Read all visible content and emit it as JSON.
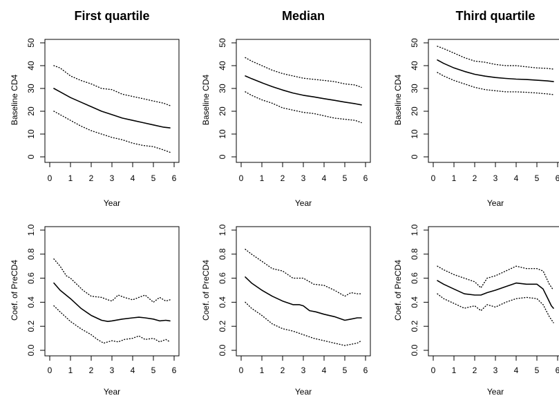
{
  "chart_data": [
    {
      "type": "line",
      "title": "First quartile",
      "xlabel": "Year",
      "ylabel": "Baseline CD4",
      "xlim": [
        0,
        6
      ],
      "ylim": [
        0,
        50
      ],
      "xticks": [
        0,
        1,
        2,
        3,
        4,
        5,
        6
      ],
      "yticks": [
        0,
        10,
        20,
        30,
        40,
        50
      ],
      "series": [
        {
          "style": "dotted",
          "x": [
            0.2,
            0.5,
            1,
            1.5,
            2,
            2.5,
            3,
            3.5,
            4,
            4.5,
            5,
            5.5,
            5.8
          ],
          "y": [
            40,
            39,
            35.5,
            33.5,
            32,
            30,
            29.5,
            27.5,
            26.5,
            25.5,
            24.5,
            23.5,
            22.5
          ]
        },
        {
          "style": "solid",
          "x": [
            0.2,
            0.5,
            1,
            1.5,
            2,
            2.5,
            3,
            3.5,
            4,
            4.5,
            5,
            5.5,
            5.8
          ],
          "y": [
            30,
            28.5,
            26,
            24,
            22,
            20,
            18.5,
            17,
            16,
            15,
            14,
            13,
            12.7
          ]
        },
        {
          "style": "dotted",
          "x": [
            0.2,
            0.5,
            1,
            1.5,
            2,
            2.5,
            3,
            3.5,
            4,
            4.5,
            5,
            5.5,
            5.8
          ],
          "y": [
            20,
            18.5,
            16,
            13.5,
            11.5,
            10,
            8.5,
            7.5,
            6,
            5,
            4.5,
            3,
            2
          ]
        }
      ]
    },
    {
      "type": "line",
      "title": "Median",
      "xlabel": "Year",
      "ylabel": "Baseline CD4",
      "xlim": [
        0,
        6
      ],
      "ylim": [
        0,
        50
      ],
      "xticks": [
        0,
        1,
        2,
        3,
        4,
        5,
        6
      ],
      "yticks": [
        0,
        10,
        20,
        30,
        40,
        50
      ],
      "series": [
        {
          "style": "dotted",
          "x": [
            0.2,
            0.5,
            1,
            1.5,
            2,
            2.5,
            3,
            3.5,
            4,
            4.5,
            5,
            5.5,
            5.8
          ],
          "y": [
            43.5,
            42,
            40,
            38,
            36.5,
            35.5,
            34.5,
            34,
            33.5,
            33,
            32,
            31.5,
            30.5
          ]
        },
        {
          "style": "solid",
          "x": [
            0.2,
            0.5,
            1,
            1.5,
            2,
            2.5,
            3,
            3.5,
            4,
            4.5,
            5,
            5.5,
            5.8
          ],
          "y": [
            35.5,
            34.3,
            32.5,
            30.8,
            29.3,
            28,
            27,
            26.3,
            25.5,
            24.8,
            24,
            23.3,
            22.8
          ]
        },
        {
          "style": "dotted",
          "x": [
            0.2,
            0.5,
            1,
            1.5,
            2,
            2.5,
            3,
            3.5,
            4,
            4.5,
            5,
            5.5,
            5.8
          ],
          "y": [
            28.5,
            27,
            25,
            23.5,
            21.5,
            20.5,
            19.5,
            19,
            18,
            17,
            16.5,
            16,
            15
          ]
        }
      ]
    },
    {
      "type": "line",
      "title": "Third quartile",
      "xlabel": "Year",
      "ylabel": "Baseline CD4",
      "xlim": [
        0,
        6
      ],
      "ylim": [
        0,
        50
      ],
      "xticks": [
        0,
        1,
        2,
        3,
        4,
        5,
        6
      ],
      "yticks": [
        0,
        10,
        20,
        30,
        40,
        50
      ],
      "series": [
        {
          "style": "dotted",
          "x": [
            0.2,
            0.5,
            1,
            1.5,
            2,
            2.5,
            3,
            3.5,
            4,
            4.5,
            5,
            5.5,
            5.8
          ],
          "y": [
            48.5,
            47.5,
            45.5,
            43.5,
            42,
            41.5,
            40.5,
            40,
            40,
            39.5,
            39,
            38.8,
            38.5
          ]
        },
        {
          "style": "solid",
          "x": [
            0.2,
            0.5,
            1,
            1.5,
            2,
            2.5,
            3,
            3.5,
            4,
            4.5,
            5,
            5.5,
            5.8
          ],
          "y": [
            42.5,
            41,
            39,
            37.5,
            36.2,
            35.4,
            34.8,
            34.4,
            34.1,
            33.9,
            33.6,
            33.3,
            33
          ]
        },
        {
          "style": "dotted",
          "x": [
            0.2,
            0.5,
            1,
            1.5,
            2,
            2.5,
            3,
            3.5,
            4,
            4.5,
            5,
            5.5,
            5.8
          ],
          "y": [
            37,
            35.5,
            33.5,
            32,
            30.5,
            29.5,
            29,
            28.5,
            28.5,
            28.3,
            28,
            27.6,
            27.3
          ]
        }
      ]
    },
    {
      "type": "line",
      "title": "",
      "xlabel": "Year",
      "ylabel": "Coef. of PreCD4",
      "xlim": [
        0,
        6
      ],
      "ylim": [
        0,
        1
      ],
      "xticks": [
        0,
        1,
        2,
        3,
        4,
        5,
        6
      ],
      "yticks": [
        0.0,
        0.2,
        0.4,
        0.6,
        0.8,
        1.0
      ],
      "tick_labels_y": [
        "0.0",
        "0.2",
        "0.4",
        "0.6",
        "0.8",
        "1.0"
      ],
      "series": [
        {
          "style": "dotted",
          "x": [
            0.2,
            0.5,
            0.8,
            1,
            1.3,
            1.6,
            2,
            2.5,
            2.8,
            3,
            3.3,
            3.6,
            4,
            4.3,
            4.6,
            5,
            5.3,
            5.6,
            5.8
          ],
          "y": [
            0.76,
            0.7,
            0.62,
            0.6,
            0.55,
            0.5,
            0.45,
            0.44,
            0.42,
            0.41,
            0.46,
            0.44,
            0.42,
            0.44,
            0.46,
            0.4,
            0.44,
            0.41,
            0.42
          ]
        },
        {
          "style": "solid",
          "x": [
            0.2,
            0.5,
            1,
            1.5,
            2,
            2.5,
            2.8,
            3,
            3.5,
            4,
            4.3,
            4.6,
            5,
            5.3,
            5.6,
            5.8
          ],
          "y": [
            0.56,
            0.5,
            0.43,
            0.35,
            0.29,
            0.25,
            0.24,
            0.245,
            0.26,
            0.27,
            0.275,
            0.27,
            0.26,
            0.245,
            0.25,
            0.245
          ]
        },
        {
          "style": "dotted",
          "x": [
            0.2,
            0.5,
            1,
            1.5,
            2,
            2.3,
            2.6,
            3,
            3.3,
            3.6,
            4,
            4.3,
            4.6,
            5,
            5.3,
            5.6,
            5.8
          ],
          "y": [
            0.37,
            0.32,
            0.24,
            0.18,
            0.13,
            0.09,
            0.06,
            0.08,
            0.07,
            0.09,
            0.1,
            0.12,
            0.09,
            0.1,
            0.07,
            0.09,
            0.07
          ]
        }
      ]
    },
    {
      "type": "line",
      "title": "",
      "xlabel": "Year",
      "ylabel": "Coef. of PreCD4",
      "xlim": [
        0,
        6
      ],
      "ylim": [
        0,
        1
      ],
      "xticks": [
        0,
        1,
        2,
        3,
        4,
        5,
        6
      ],
      "yticks": [
        0.0,
        0.2,
        0.4,
        0.6,
        0.8,
        1.0
      ],
      "tick_labels_y": [
        "0.0",
        "0.2",
        "0.4",
        "0.6",
        "0.8",
        "1.0"
      ],
      "series": [
        {
          "style": "dotted",
          "x": [
            0.2,
            0.5,
            1,
            1.5,
            2,
            2.5,
            3,
            3.5,
            4,
            4.5,
            5,
            5.3,
            5.6,
            5.8
          ],
          "y": [
            0.84,
            0.8,
            0.74,
            0.68,
            0.66,
            0.6,
            0.6,
            0.55,
            0.54,
            0.5,
            0.45,
            0.48,
            0.47,
            0.47
          ]
        },
        {
          "style": "solid",
          "x": [
            0.2,
            0.5,
            1,
            1.5,
            2,
            2.5,
            2.8,
            3,
            3.3,
            3.6,
            4,
            4.5,
            5,
            5.3,
            5.6,
            5.8
          ],
          "y": [
            0.61,
            0.56,
            0.5,
            0.45,
            0.41,
            0.38,
            0.38,
            0.37,
            0.33,
            0.32,
            0.3,
            0.28,
            0.25,
            0.26,
            0.27,
            0.27
          ]
        },
        {
          "style": "dotted",
          "x": [
            0.2,
            0.5,
            1,
            1.5,
            2,
            2.5,
            3,
            3.5,
            4,
            4.5,
            5,
            5.3,
            5.6,
            5.8
          ],
          "y": [
            0.4,
            0.35,
            0.29,
            0.22,
            0.18,
            0.16,
            0.13,
            0.1,
            0.08,
            0.06,
            0.04,
            0.05,
            0.06,
            0.08
          ]
        }
      ]
    },
    {
      "type": "line",
      "title": "",
      "xlabel": "Year",
      "ylabel": "Coef. of PreCD4",
      "xlim": [
        0,
        6
      ],
      "ylim": [
        0,
        1
      ],
      "xticks": [
        0,
        1,
        2,
        3,
        4,
        5,
        6
      ],
      "yticks": [
        0.0,
        0.2,
        0.4,
        0.6,
        0.8,
        1.0
      ],
      "tick_labels_y": [
        "0.0",
        "0.2",
        "0.4",
        "0.6",
        "0.8",
        "1.0"
      ],
      "series": [
        {
          "style": "dotted",
          "x": [
            0.2,
            0.5,
            1,
            1.5,
            2,
            2.3,
            2.6,
            3,
            3.5,
            4,
            4.5,
            5,
            5.3,
            5.6,
            5.8
          ],
          "y": [
            0.7,
            0.67,
            0.63,
            0.6,
            0.57,
            0.52,
            0.6,
            0.62,
            0.66,
            0.7,
            0.68,
            0.68,
            0.66,
            0.55,
            0.5
          ]
        },
        {
          "style": "solid",
          "x": [
            0.2,
            0.5,
            1,
            1.5,
            2,
            2.3,
            2.6,
            3,
            3.5,
            4,
            4.5,
            5,
            5.3,
            5.5,
            5.7,
            5.8
          ],
          "y": [
            0.58,
            0.55,
            0.51,
            0.47,
            0.46,
            0.46,
            0.48,
            0.5,
            0.53,
            0.56,
            0.55,
            0.55,
            0.51,
            0.44,
            0.37,
            0.35
          ]
        },
        {
          "style": "dotted",
          "x": [
            0.2,
            0.5,
            1,
            1.5,
            2,
            2.3,
            2.6,
            3,
            3.5,
            4,
            4.5,
            5,
            5.3,
            5.6,
            5.8
          ],
          "y": [
            0.47,
            0.43,
            0.39,
            0.35,
            0.37,
            0.33,
            0.38,
            0.36,
            0.4,
            0.43,
            0.44,
            0.43,
            0.38,
            0.28,
            0.23
          ]
        }
      ]
    }
  ]
}
